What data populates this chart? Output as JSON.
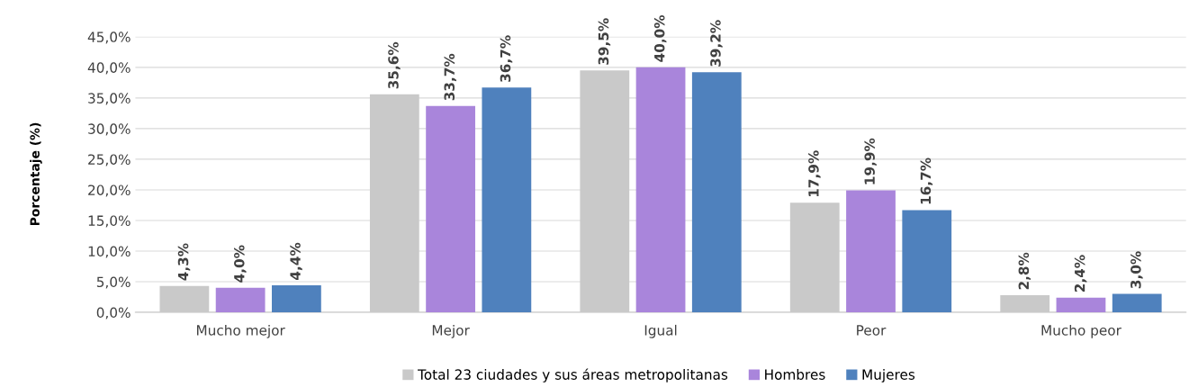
{
  "chart_data": {
    "type": "bar",
    "ylabel": "Porcentaje (%)",
    "categories": [
      "Mucho mejor",
      "Mejor",
      "Igual",
      "Peor",
      "Mucho peor"
    ],
    "series": [
      {
        "name": "Total 23 ciudades y sus áreas metropolitanas",
        "color": "#c9c9c9",
        "values": [
          4.3,
          35.6,
          39.5,
          17.9,
          2.8
        ],
        "value_labels": [
          "4,3%",
          "35,6%",
          "39,5%",
          "17,9%",
          "2,8%"
        ]
      },
      {
        "name": "Hombres",
        "color": "#a985db",
        "values": [
          4.0,
          33.7,
          40.0,
          19.9,
          2.4
        ],
        "value_labels": [
          "4,0%",
          "33,7%",
          "40,0%",
          "19,9%",
          "2,4%"
        ]
      },
      {
        "name": "Mujeres",
        "color": "#4f81bd",
        "values": [
          4.4,
          36.7,
          39.2,
          16.7,
          3.0
        ],
        "value_labels": [
          "4,4%",
          "36,7%",
          "39,2%",
          "16,7%",
          "3,0%"
        ]
      }
    ],
    "ylim": [
      0,
      45
    ],
    "yticks": [
      {
        "value": 0,
        "label": "0,0%"
      },
      {
        "value": 5,
        "label": "5,0%"
      },
      {
        "value": 10,
        "label": "10,0%"
      },
      {
        "value": 15,
        "label": "15,0%"
      },
      {
        "value": 20,
        "label": "20,0%"
      },
      {
        "value": 25,
        "label": "25,0%"
      },
      {
        "value": 30,
        "label": "30,0%"
      },
      {
        "value": 35,
        "label": "35,0%"
      },
      {
        "value": 40,
        "label": "40,0%"
      },
      {
        "value": 45,
        "label": "45,0%"
      }
    ],
    "grid": "y",
    "legend": "bottom"
  }
}
